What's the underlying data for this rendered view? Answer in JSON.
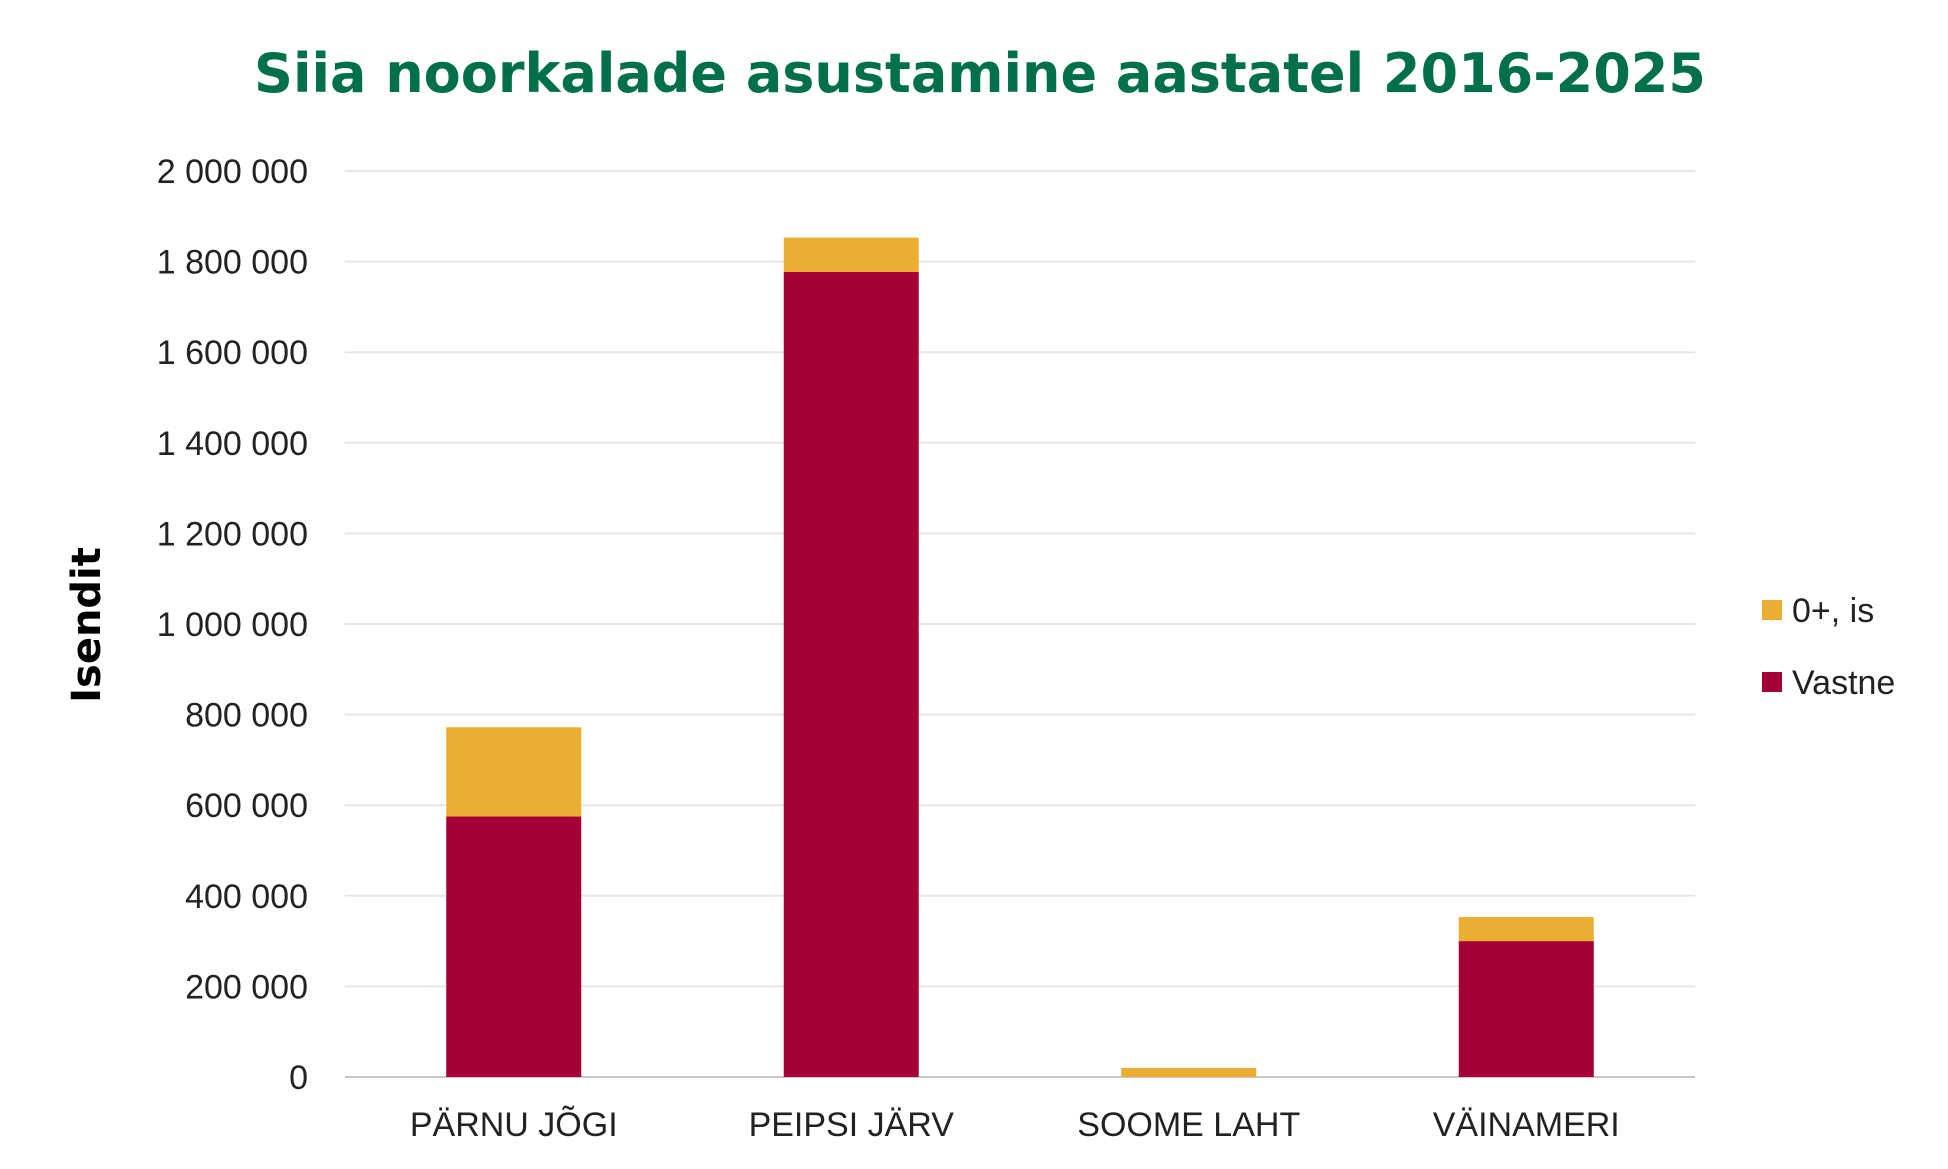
{
  "chart_data": {
    "type": "bar",
    "stacked": true,
    "title": "Siia noorkalade asustamine aastatel 2016-2025",
    "xlabel": "",
    "ylabel": "Isendit",
    "ylim": [
      0,
      2000000
    ],
    "yticks": [
      "0",
      "200 000",
      "400 000",
      "600 000",
      "800 000",
      "1 000 000",
      "1 200 000",
      "1 400 000",
      "1 600 000",
      "1 800 000",
      "2 000 000"
    ],
    "ytick_values": [
      0,
      200000,
      400000,
      600000,
      800000,
      1000000,
      1200000,
      1400000,
      1600000,
      1800000,
      2000000
    ],
    "grid": true,
    "legend_position": "right",
    "categories": [
      "PÄRNU JÕGI",
      "PEIPSI JÄRV",
      "SOOME LAHT",
      "VÄINAMERI"
    ],
    "series": [
      {
        "name": "Vastne",
        "color": "#a50036",
        "values": [
          575000,
          1777000,
          0,
          300000
        ]
      },
      {
        "name": "0+, is",
        "color": "#ebae33",
        "values": [
          197000,
          76000,
          20000,
          53000
        ]
      }
    ],
    "legend_order": [
      "0+, is",
      "Vastne"
    ]
  }
}
